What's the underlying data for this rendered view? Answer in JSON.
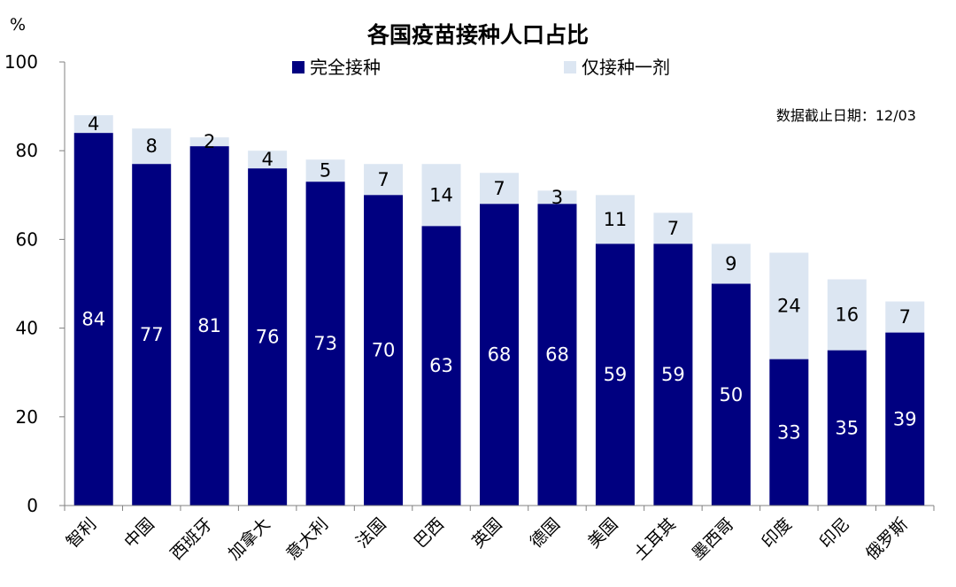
{
  "chart_data": {
    "type": "bar",
    "stacked": true,
    "title": "各国疫苗接种人口占比",
    "ylabel": "%",
    "ylim": [
      0,
      100
    ],
    "yticks": [
      0,
      20,
      40,
      60,
      80,
      100
    ],
    "grid": false,
    "legend": "top-center",
    "annotation": "数据截止日期：12/03",
    "categories": [
      "智利",
      "中国",
      "西班牙",
      "加拿大",
      "意大利",
      "法国",
      "巴西",
      "英国",
      "德国",
      "美国",
      "土耳其",
      "墨西哥",
      "印度",
      "印尼",
      "俄罗斯"
    ],
    "series": [
      {
        "name": "完全接种",
        "color": "#000080",
        "values": [
          84,
          77,
          81,
          76,
          73,
          70,
          63,
          68,
          68,
          59,
          59,
          50,
          33,
          35,
          39
        ]
      },
      {
        "name": "仅接种一剂",
        "color": "#dce6f2",
        "values": [
          4,
          8,
          2,
          4,
          5,
          7,
          14,
          7,
          3,
          11,
          7,
          9,
          24,
          16,
          7
        ]
      }
    ]
  }
}
